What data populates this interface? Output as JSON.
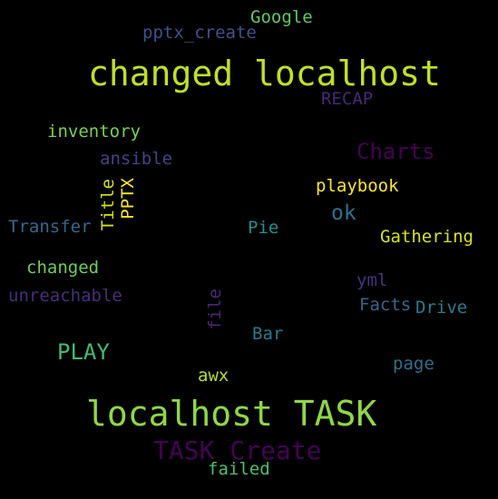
{
  "background_color": "#000000",
  "words": {
    "google": {
      "text": "Google",
      "color": "#5ec962"
    },
    "pptx_create": {
      "text": "pptx_create",
      "color": "#3b528b"
    },
    "changed_localhost": {
      "text": "changed localhost",
      "color": "#c2df23"
    },
    "recap": {
      "text": "RECAP",
      "color": "#482878"
    },
    "inventory": {
      "text": "inventory",
      "color": "#7ad151"
    },
    "charts": {
      "text": "Charts",
      "color": "#440154"
    },
    "ansible": {
      "text": "ansible",
      "color": "#414487"
    },
    "playbook": {
      "text": "playbook",
      "color": "#fde725"
    },
    "pptx": {
      "text": "PPTX",
      "color": "#fde725"
    },
    "title": {
      "text": "Title",
      "color": "#d2e21b"
    },
    "ok": {
      "text": "ok",
      "color": "#2c728e"
    },
    "transfer": {
      "text": "Transfer",
      "color": "#31688e"
    },
    "pie": {
      "text": "Pie",
      "color": "#21918c"
    },
    "gathering": {
      "text": "Gathering",
      "color": "#d8e219"
    },
    "changed": {
      "text": "changed",
      "color": "#6ece58"
    },
    "yml": {
      "text": "yml",
      "color": "#46327e"
    },
    "unreachable": {
      "text": "unreachable",
      "color": "#472d7b"
    },
    "file": {
      "text": "file",
      "color": "#482677"
    },
    "facts": {
      "text": "Facts",
      "color": "#31688e"
    },
    "drive": {
      "text": "Drive",
      "color": "#287c8e"
    },
    "bar": {
      "text": "Bar",
      "color": "#2a788e"
    },
    "play": {
      "text": "PLAY",
      "color": "#3fbc73"
    },
    "page": {
      "text": "page",
      "color": "#2d708e"
    },
    "awx": {
      "text": "awx",
      "color": "#b5de2b"
    },
    "localhost_task": {
      "text": "localhost TASK",
      "color": "#8fd744"
    },
    "task_create": {
      "text": "TASK Create",
      "color": "#440154"
    },
    "failed": {
      "text": "failed",
      "color": "#4ac16d"
    }
  }
}
